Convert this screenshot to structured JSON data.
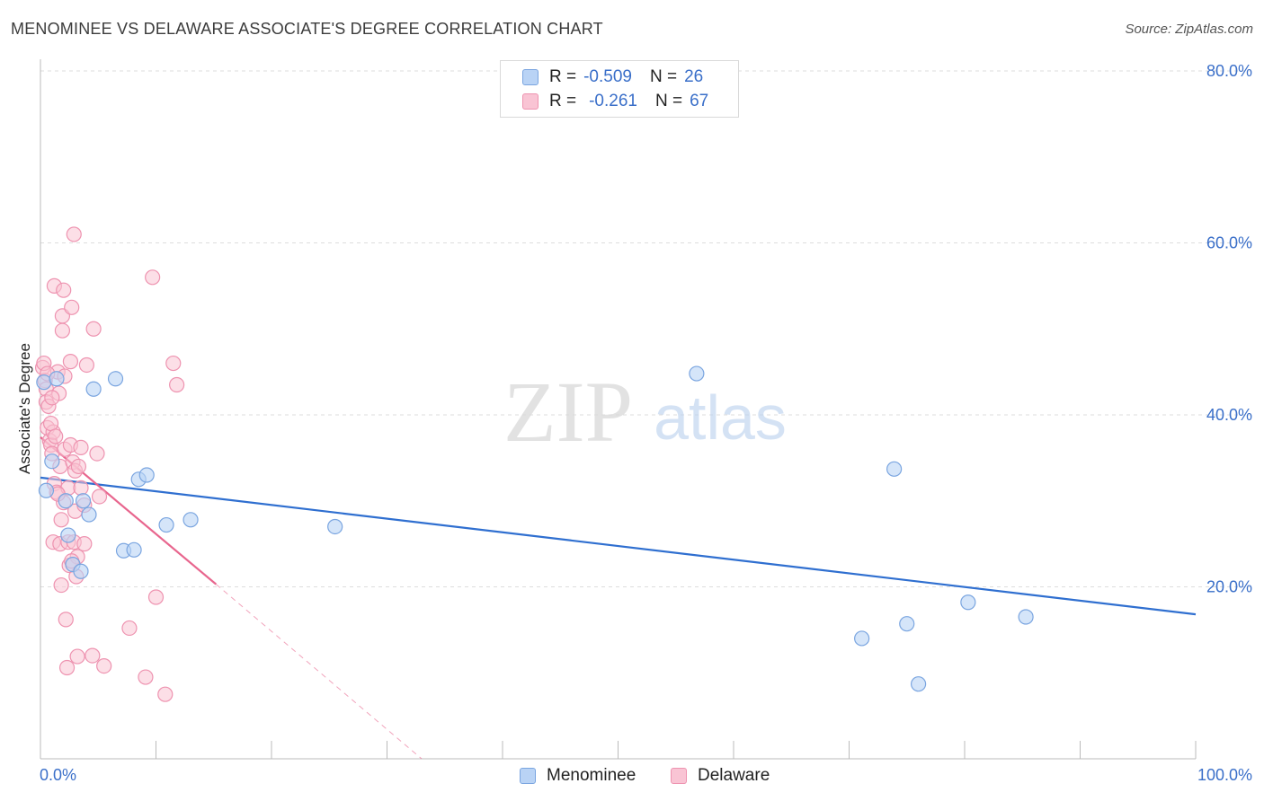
{
  "title": "MENOMINEE VS DELAWARE ASSOCIATE'S DEGREE CORRELATION CHART",
  "source": "Source: ZipAtlas.com",
  "watermark": {
    "zip": "ZIP",
    "atlas": "atlas"
  },
  "legend_top": {
    "menominee": {
      "r_label": "R =",
      "r_value": "-0.509",
      "n_label": "N =",
      "n_value": "26"
    },
    "delaware": {
      "r_label": "R =",
      "r_value": "-0.261",
      "n_label": "N =",
      "n_value": "67"
    }
  },
  "legend_bottom": {
    "menominee": "Menominee",
    "delaware": "Delaware"
  },
  "colors": {
    "menominee_fill": "#b9d3f5",
    "menominee_edge": "#7aa5e0",
    "menominee_line": "#2f6fd0",
    "delaware_fill": "#f9c4d4",
    "delaware_edge": "#ee93b0",
    "delaware_line": "#e8668e",
    "axis_text": "#3a6fc9"
  },
  "chart_data": {
    "type": "scatter",
    "title": "MENOMINEE VS DELAWARE ASSOCIATE'S DEGREE CORRELATION CHART",
    "xlabel": "",
    "ylabel": "Associate's Degree",
    "xlim": [
      0,
      100
    ],
    "ylim": [
      0,
      80
    ],
    "x_tick_labels": [
      "0.0%",
      "100.0%"
    ],
    "y_tick_labels": [
      "20.0%",
      "40.0%",
      "60.0%",
      "80.0%"
    ],
    "y_ticks": [
      20,
      40,
      60,
      80
    ],
    "grid": true,
    "series": [
      {
        "name": "Menominee",
        "r": -0.509,
        "n": 26,
        "points": [
          [
            0.3,
            43.8
          ],
          [
            0.5,
            31.2
          ],
          [
            1.0,
            34.6
          ],
          [
            1.4,
            44.2
          ],
          [
            2.2,
            30.0
          ],
          [
            2.4,
            26.0
          ],
          [
            2.8,
            22.6
          ],
          [
            3.5,
            21.8
          ],
          [
            3.7,
            30.0
          ],
          [
            4.2,
            28.4
          ],
          [
            4.6,
            43.0
          ],
          [
            6.5,
            44.2
          ],
          [
            7.2,
            24.2
          ],
          [
            8.1,
            24.3
          ],
          [
            8.5,
            32.5
          ],
          [
            9.2,
            33.0
          ],
          [
            10.9,
            27.2
          ],
          [
            13.0,
            27.8
          ],
          [
            25.5,
            27.0
          ],
          [
            56.8,
            44.8
          ],
          [
            73.9,
            33.7
          ],
          [
            71.1,
            14.0
          ],
          [
            75.0,
            15.7
          ],
          [
            76.0,
            8.7
          ],
          [
            80.3,
            18.2
          ],
          [
            85.3,
            16.5
          ]
        ],
        "trend": {
          "x": [
            0,
            100
          ],
          "y": [
            32.7,
            16.8
          ]
        }
      },
      {
        "name": "Delaware",
        "r": -0.261,
        "n": 67,
        "points": [
          [
            0.2,
            45.5
          ],
          [
            0.4,
            44.0
          ],
          [
            0.5,
            43.0
          ],
          [
            0.5,
            41.5
          ],
          [
            0.6,
            38.5
          ],
          [
            0.7,
            41.0
          ],
          [
            0.8,
            37.0
          ],
          [
            0.9,
            36.5
          ],
          [
            1.0,
            35.5
          ],
          [
            1.1,
            38.0
          ],
          [
            1.1,
            25.2
          ],
          [
            1.2,
            32.0
          ],
          [
            1.2,
            55.0
          ],
          [
            1.4,
            31.0
          ],
          [
            1.5,
            45.0
          ],
          [
            1.6,
            42.5
          ],
          [
            1.7,
            34.0
          ],
          [
            1.7,
            25.0
          ],
          [
            1.8,
            27.8
          ],
          [
            1.8,
            20.2
          ],
          [
            1.9,
            51.5
          ],
          [
            1.9,
            49.8
          ],
          [
            2.0,
            54.5
          ],
          [
            2.0,
            29.8
          ],
          [
            2.1,
            36.0
          ],
          [
            2.2,
            16.2
          ],
          [
            2.3,
            10.6
          ],
          [
            2.4,
            31.5
          ],
          [
            2.4,
            25.2
          ],
          [
            2.5,
            22.5
          ],
          [
            2.6,
            36.5
          ],
          [
            2.6,
            46.2
          ],
          [
            2.7,
            52.5
          ],
          [
            2.8,
            34.5
          ],
          [
            2.9,
            61.0
          ],
          [
            2.9,
            25.2
          ],
          [
            3.0,
            28.8
          ],
          [
            3.0,
            33.5
          ],
          [
            3.1,
            21.2
          ],
          [
            3.2,
            23.5
          ],
          [
            3.2,
            11.9
          ],
          [
            3.3,
            34.0
          ],
          [
            3.5,
            31.5
          ],
          [
            3.5,
            36.2
          ],
          [
            3.8,
            29.5
          ],
          [
            3.8,
            25.0
          ],
          [
            4.0,
            45.8
          ],
          [
            4.5,
            12.0
          ],
          [
            4.6,
            50.0
          ],
          [
            4.9,
            35.5
          ],
          [
            5.1,
            30.5
          ],
          [
            5.5,
            10.8
          ],
          [
            7.7,
            15.2
          ],
          [
            9.1,
            9.5
          ],
          [
            9.7,
            56.0
          ],
          [
            10.0,
            18.8
          ],
          [
            10.8,
            7.5
          ],
          [
            11.5,
            46.0
          ],
          [
            11.8,
            43.5
          ],
          [
            0.3,
            46.0
          ],
          [
            0.6,
            44.8
          ],
          [
            0.9,
            39.0
          ],
          [
            1.3,
            37.5
          ],
          [
            1.5,
            30.8
          ],
          [
            2.1,
            44.5
          ],
          [
            2.7,
            23.0
          ],
          [
            1.0,
            42.0
          ]
        ],
        "trend": {
          "x": [
            0,
            15.2
          ],
          "y": [
            37.4,
            20.3
          ]
        },
        "trend_extension": {
          "x": [
            15.2,
            33
          ],
          "y": [
            20.3,
            0
          ]
        }
      }
    ]
  }
}
